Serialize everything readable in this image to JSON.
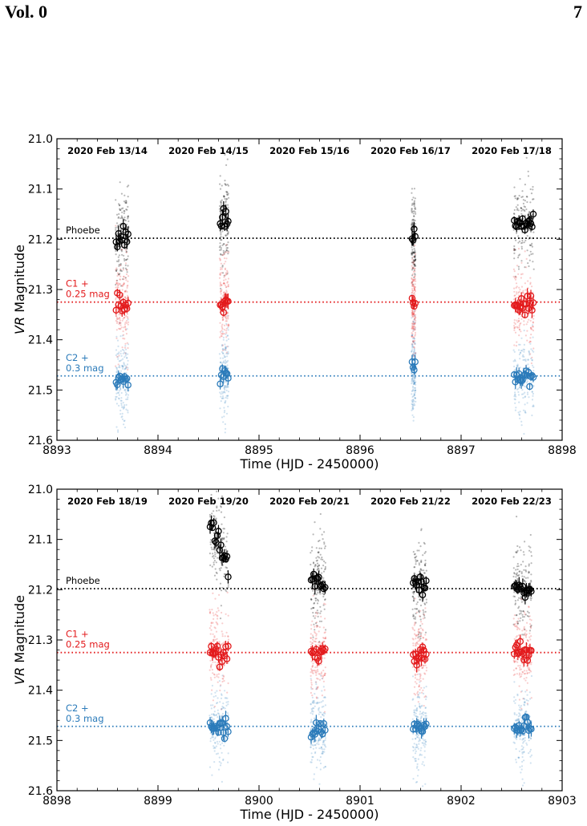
{
  "header": {
    "volume": "Vol. 0",
    "page_number": "7"
  },
  "colors": {
    "phoebe": "#000000",
    "c1": "#e31a1c",
    "c2": "#2b7bba"
  },
  "chart_data": [
    {
      "type": "scatter",
      "xlabel": "Time (HJD - 2450000)",
      "ylabel_italic": "VR",
      "ylabel_rest": " Magnitude",
      "xlim": [
        8893,
        8898
      ],
      "ylim": [
        21.6,
        21.0
      ],
      "y_inverted": true,
      "xticks": [
        "8893",
        "8894",
        "8895",
        "8896",
        "8897",
        "8898"
      ],
      "yticks": [
        "21.0",
        "21.1",
        "21.2",
        "21.3",
        "21.4",
        "21.5",
        "21.6"
      ],
      "night_labels": [
        "2020 Feb 13/14",
        "2020 Feb 14/15",
        "2020 Feb 15/16",
        "2020 Feb 16/17",
        "2020 Feb 17/18"
      ],
      "reference_lines": [
        {
          "key": "phoebe",
          "label_lines": [
            "Phoebe"
          ],
          "value": 21.198
        },
        {
          "key": "c1",
          "label_lines": [
            "C1 +",
            "0.25 mag"
          ],
          "value": 21.325
        },
        {
          "key": "c2",
          "label_lines": [
            "C2 +",
            "0.3 mag"
          ],
          "value": 21.472
        }
      ],
      "nights": [
        {
          "start": 8893.58,
          "end": 8893.71,
          "phoebe": 21.195,
          "c1": 21.33,
          "c2": 21.475
        },
        {
          "start": 8894.61,
          "end": 8894.7,
          "phoebe": 21.16,
          "c1": 21.32,
          "c2": 21.47
        },
        {
          "start": 8896.51,
          "end": 8896.55,
          "phoebe": 21.19,
          "c1": 21.33,
          "c2": 21.46
        },
        {
          "start": 8897.52,
          "end": 8897.72,
          "phoebe": 21.17,
          "c1": 21.33,
          "c2": 21.475
        }
      ]
    },
    {
      "type": "scatter",
      "xlabel": "Time (HJD - 2450000)",
      "ylabel_italic": "VR",
      "ylabel_rest": " Magnitude",
      "xlim": [
        8898,
        8903
      ],
      "ylim": [
        21.6,
        21.0
      ],
      "y_inverted": true,
      "xticks": [
        "8898",
        "8899",
        "8900",
        "8901",
        "8902",
        "8903"
      ],
      "yticks": [
        "21.0",
        "21.1",
        "21.2",
        "21.3",
        "21.4",
        "21.5",
        "21.6"
      ],
      "night_labels": [
        "2020 Feb 18/19",
        "2020 Feb 19/20",
        "2020 Feb 20/21",
        "2020 Feb 21/22",
        "2020 Feb 22/23"
      ],
      "reference_lines": [
        {
          "key": "phoebe",
          "label_lines": [
            "Phoebe"
          ],
          "value": 21.198
        },
        {
          "key": "c1",
          "label_lines": [
            "C1 +",
            "0.25 mag"
          ],
          "value": 21.325
        },
        {
          "key": "c2",
          "label_lines": [
            "C2 +",
            "0.3 mag"
          ],
          "value": 21.472
        }
      ],
      "nights": [
        {
          "start": 8899.51,
          "end": 8899.7,
          "phoebe_start": 21.07,
          "phoebe_end": 21.15,
          "c1": 21.325,
          "c2": 21.475
        },
        {
          "start": 8900.51,
          "end": 8900.66,
          "phoebe": 21.185,
          "c1": 21.325,
          "c2": 21.475
        },
        {
          "start": 8901.52,
          "end": 8901.66,
          "phoebe": 21.19,
          "c1": 21.33,
          "c2": 21.475
        },
        {
          "start": 8902.52,
          "end": 8902.7,
          "phoebe": 21.195,
          "c1": 21.325,
          "c2": 21.475
        }
      ]
    }
  ]
}
